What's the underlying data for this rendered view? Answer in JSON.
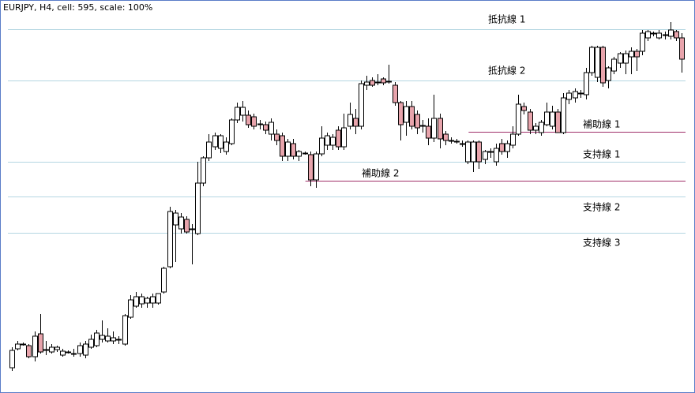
{
  "chart_data": {
    "type": "candlestick",
    "title": "EURJPY, H4, cell: 595, scale: 100%",
    "ylim": [
      0,
      480
    ],
    "up_color": "#ffffff",
    "down_color": "#e8a4ac",
    "open": [
      24,
      48,
      54,
      52,
      38,
      67,
      46,
      44,
      47,
      40,
      44,
      42,
      42,
      40,
      50,
      52,
      60,
      58,
      58,
      60,
      54,
      88,
      102,
      105,
      106,
      106,
      106,
      120,
      152,
      205,
      200,
      212,
      200,
      194,
      258,
      290,
      304,
      302,
      298,
      308,
      338,
      344,
      344,
      342,
      332,
      332,
      320,
      320,
      318,
      292,
      308,
      292,
      296,
      294,
      262,
      295,
      306,
      306,
      325,
      304,
      330,
      340,
      330,
      382,
      388,
      385,
      390,
      387,
      382,
      360,
      335,
      355,
      345,
      330,
      330,
      315,
      340,
      320,
      312,
      311,
      308,
      285,
      285,
      310,
      288,
      298,
      285,
      308,
      298,
      306,
      320,
      355,
      348,
      325,
      322,
      332,
      330,
      348,
      322,
      364,
      366,
      372,
      370,
      398,
      392,
      430,
      388,
      400,
      410,
      410,
      418,
      425,
      425,
      442,
      448,
      442,
      445,
      444,
      450,
      442
    ],
    "high": [
      50,
      58,
      56,
      54,
      70,
      92,
      58,
      54,
      52,
      48,
      46,
      48,
      56,
      58,
      66,
      72,
      84,
      74,
      70,
      64,
      92,
      116,
      120,
      118,
      114,
      118,
      118,
      152,
      228,
      224,
      220,
      216,
      206,
      285,
      292,
      320,
      322,
      320,
      316,
      340,
      360,
      362,
      350,
      346,
      338,
      336,
      340,
      326,
      322,
      314,
      314,
      300,
      298,
      298,
      298,
      330,
      322,
      320,
      330,
      346,
      360,
      352,
      388,
      394,
      392,
      396,
      392,
      408,
      386,
      362,
      362,
      362,
      350,
      338,
      340,
      370,
      346,
      324,
      316,
      314,
      312,
      312,
      312,
      312,
      300,
      302,
      308,
      314,
      312,
      330,
      370,
      360,
      352,
      334,
      338,
      360,
      356,
      352,
      372,
      376,
      378,
      376,
      404,
      432,
      432,
      432,
      406,
      418,
      424,
      426,
      430,
      428,
      452,
      452,
      450,
      452,
      450,
      462,
      452,
      448
    ],
    "low": [
      20,
      46,
      52,
      36,
      32,
      42,
      40,
      42,
      44,
      38,
      42,
      38,
      38,
      36,
      48,
      50,
      56,
      56,
      54,
      54,
      52,
      86,
      100,
      100,
      100,
      100,
      104,
      118,
      150,
      158,
      194,
      194,
      155,
      192,
      254,
      286,
      300,
      296,
      294,
      306,
      334,
      336,
      328,
      326,
      326,
      320,
      312,
      306,
      286,
      286,
      288,
      286,
      294,
      254,
      252,
      292,
      300,
      300,
      300,
      300,
      326,
      320,
      326,
      376,
      380,
      382,
      382,
      384,
      356,
      312,
      318,
      326,
      320,
      322,
      306,
      310,
      302,
      306,
      308,
      308,
      304,
      282,
      272,
      276,
      282,
      290,
      280,
      294,
      290,
      302,
      318,
      345,
      320,
      320,
      318,
      330,
      326,
      322,
      320,
      358,
      360,
      366,
      364,
      394,
      386,
      380,
      378,
      396,
      404,
      396,
      396,
      400,
      420,
      438,
      444,
      440,
      440,
      440,
      438,
      398
    ],
    "close": [
      46,
      54,
      54,
      38,
      64,
      44,
      47,
      50,
      50,
      45,
      44,
      42,
      52,
      54,
      60,
      68,
      65,
      64,
      62,
      60,
      90,
      110,
      114,
      114,
      112,
      114,
      118,
      150,
      222,
      220,
      215,
      196,
      200,
      258,
      290,
      310,
      318,
      318,
      310,
      338,
      354,
      354,
      332,
      330,
      333,
      325,
      335,
      312,
      292,
      310,
      292,
      298,
      296,
      262,
      295,
      315,
      318,
      316,
      304,
      328,
      345,
      330,
      384,
      386,
      382,
      386,
      385,
      387,
      360,
      332,
      355,
      330,
      328,
      331,
      315,
      340,
      314,
      312,
      312,
      311,
      308,
      310,
      310,
      285,
      298,
      298,
      302,
      298,
      308,
      320,
      358,
      350,
      325,
      330,
      335,
      348,
      348,
      322,
      366,
      372,
      374,
      372,
      398,
      430,
      430,
      385,
      404,
      415,
      422,
      422,
      425,
      418,
      448,
      450,
      448,
      448,
      446,
      452,
      442,
      415
    ],
    "levels": [
      {
        "label": "抵抗線 1",
        "value": 453,
        "color": "#b4d6e2"
      },
      {
        "label": "抵抗線 2",
        "value": 388,
        "color": "#b4d6e2"
      },
      {
        "label": "補助線 1",
        "value": 323,
        "color": "#a0306a",
        "from": 82
      },
      {
        "label": "支持線 1",
        "value": 285,
        "color": "#b4d6e2"
      },
      {
        "label": "補助線 2",
        "value": 261,
        "color": "#a0306a",
        "from": 53
      },
      {
        "label": "支持線 2",
        "value": 241,
        "color": "#b4d6e2"
      },
      {
        "label": "支持線 3",
        "value": 195,
        "color": "#b4d6e2"
      }
    ]
  }
}
